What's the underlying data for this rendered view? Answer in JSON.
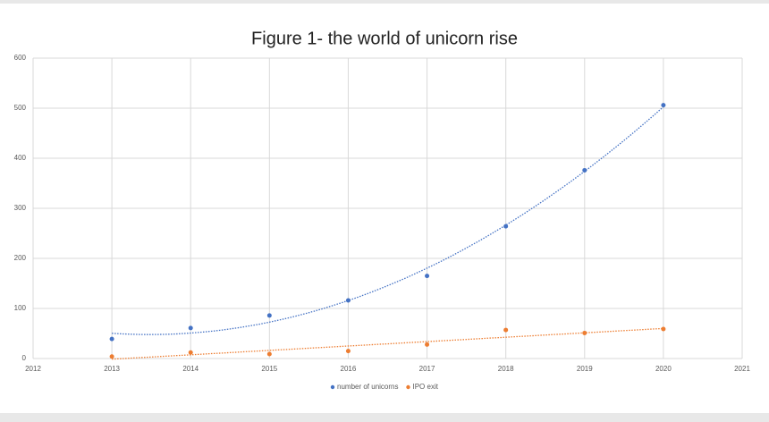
{
  "chart_data": {
    "type": "scatter",
    "title": "Figure 1- the world of unicorn rise",
    "x": [
      2013,
      2014,
      2015,
      2016,
      2017,
      2018,
      2019,
      2020
    ],
    "series": [
      {
        "name": "number of unicorns",
        "color": "#4472c4",
        "values": [
          39,
          61,
          86,
          116,
          165,
          264,
          376,
          506
        ],
        "trendline": "polynomial"
      },
      {
        "name": "IPO exit",
        "color": "#ed7d31",
        "values": [
          4,
          12,
          9,
          15,
          28,
          57,
          51,
          59
        ],
        "trendline": "linear"
      }
    ],
    "xlim": [
      2012,
      2021
    ],
    "xticks": [
      2012,
      2013,
      2014,
      2015,
      2016,
      2017,
      2018,
      2019,
      2020,
      2021
    ],
    "ylim": [
      0,
      600
    ],
    "yticks": [
      0,
      100,
      200,
      300,
      400,
      500,
      600
    ],
    "grid": true,
    "legend": "bottom"
  }
}
